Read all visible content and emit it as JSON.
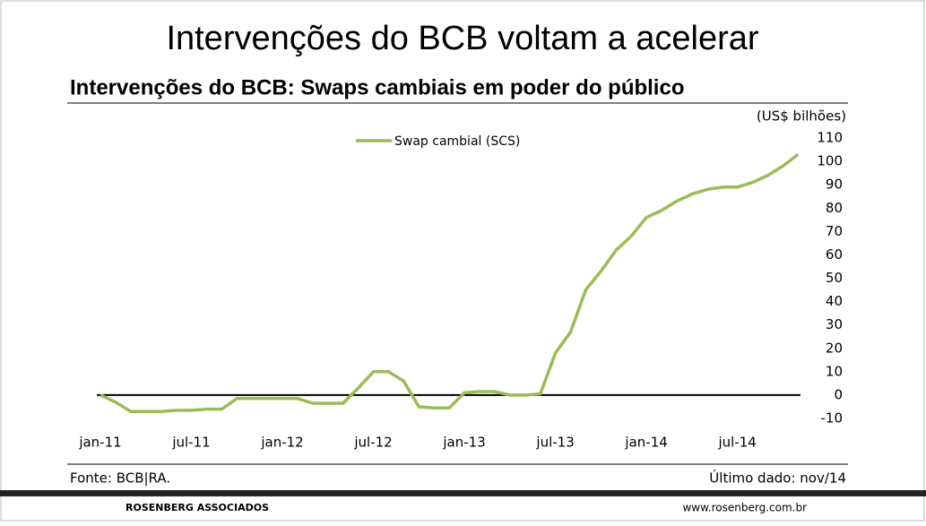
{
  "slide_title": "Intervenções do BCB voltam a acelerar",
  "source": "Fonte: BCB|RA.",
  "last_data": "Último dado: nov/14",
  "footer": {
    "company": "ROSENBERG ASSOCIADOS",
    "url": "www.rosenberg.com.br"
  },
  "chart_data": {
    "type": "line",
    "title": "Intervenções do BCB: Swaps cambiais em poder do público",
    "y_axis_label": "(US$ bilhões)",
    "categories": [
      "jan-11",
      null,
      null,
      null,
      null,
      null,
      "jul-11",
      null,
      null,
      null,
      null,
      null,
      "jan-12",
      null,
      null,
      null,
      null,
      null,
      "jul-12",
      null,
      null,
      null,
      null,
      null,
      "jan-13",
      null,
      null,
      null,
      null,
      null,
      "jul-13",
      null,
      null,
      null,
      null,
      null,
      "jan-14",
      null,
      null,
      null,
      null,
      null,
      "jul-14",
      null,
      null,
      null,
      null
    ],
    "series": [
      {
        "name": "Swap cambial (SCS)",
        "color": "#9bbb59",
        "values": [
          0,
          -3,
          -7,
          -7,
          -7,
          -6.5,
          -6.5,
          -6,
          -6,
          -1.5,
          -1.5,
          -1.5,
          -1.5,
          -1.5,
          -3.5,
          -3.5,
          -3.5,
          3,
          10,
          10,
          6,
          -5,
          -5.5,
          -5.5,
          1,
          1.5,
          1.5,
          0,
          0,
          0.5,
          18,
          27,
          45,
          53,
          62,
          68,
          76,
          79,
          83,
          86,
          88,
          89,
          89,
          91,
          94,
          98,
          103
        ]
      }
    ],
    "ylim": [
      -10,
      110
    ],
    "yticks": [
      -10,
      0,
      10,
      20,
      30,
      40,
      50,
      60,
      70,
      80,
      90,
      100,
      110
    ],
    "zero_line": true
  }
}
